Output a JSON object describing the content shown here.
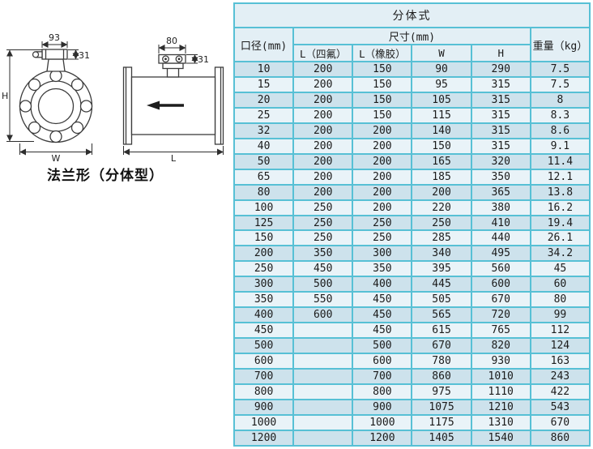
{
  "diagram": {
    "caption": "法兰形（分体型）",
    "front_view": {
      "dim_box_width": "93",
      "dim_box_height": "31",
      "dim_height_label": "H",
      "dim_width_label": "W"
    },
    "side_view": {
      "dim_box_width": "80",
      "dim_box_height": "31",
      "dim_length_label": "L"
    }
  },
  "table": {
    "title": "分体式",
    "headers": {
      "diameter": "口径(mm)",
      "size_group": "尺寸(mm)",
      "l_ptfe": "L（四氟）",
      "l_rubber": "L（橡胶）",
      "w": "W",
      "h": "H",
      "weight": "重量（kg）"
    },
    "rows": [
      [
        "10",
        "200",
        "150",
        "90",
        "290",
        "7.5"
      ],
      [
        "15",
        "200",
        "150",
        "95",
        "315",
        "7.5"
      ],
      [
        "20",
        "200",
        "150",
        "105",
        "315",
        "8"
      ],
      [
        "25",
        "200",
        "150",
        "115",
        "315",
        "8.3"
      ],
      [
        "32",
        "200",
        "200",
        "140",
        "315",
        "8.6"
      ],
      [
        "40",
        "200",
        "200",
        "150",
        "315",
        "9.1"
      ],
      [
        "50",
        "200",
        "200",
        "165",
        "320",
        "11.4"
      ],
      [
        "65",
        "200",
        "200",
        "185",
        "350",
        "12.1"
      ],
      [
        "80",
        "200",
        "200",
        "200",
        "365",
        "13.8"
      ],
      [
        "100",
        "250",
        "200",
        "220",
        "380",
        "16.2"
      ],
      [
        "125",
        "250",
        "250",
        "250",
        "410",
        "19.4"
      ],
      [
        "150",
        "250",
        "250",
        "285",
        "440",
        "26.1"
      ],
      [
        "200",
        "350",
        "300",
        "340",
        "495",
        "34.2"
      ],
      [
        "250",
        "450",
        "350",
        "395",
        "560",
        "45"
      ],
      [
        "300",
        "500",
        "400",
        "445",
        "600",
        "60"
      ],
      [
        "350",
        "550",
        "450",
        "505",
        "670",
        "80"
      ],
      [
        "400",
        "600",
        "450",
        "565",
        "720",
        "99"
      ],
      [
        "450",
        "",
        "450",
        "615",
        "765",
        "112"
      ],
      [
        "500",
        "",
        "500",
        "670",
        "820",
        "124"
      ],
      [
        "600",
        "",
        "600",
        "780",
        "930",
        "163"
      ],
      [
        "700",
        "",
        "700",
        "860",
        "1010",
        "243"
      ],
      [
        "800",
        "",
        "800",
        "975",
        "1110",
        "422"
      ],
      [
        "900",
        "",
        "900",
        "1075",
        "1210",
        "543"
      ],
      [
        "1000",
        "",
        "1000",
        "1175",
        "1310",
        "670"
      ],
      [
        "1200",
        "",
        "1200",
        "1405",
        "1540",
        "860"
      ]
    ],
    "colors": {
      "border": "#57c0d5",
      "header_bg": "#e3eff5",
      "row_odd_bg": "#cde2ec",
      "row_even_bg": "#e9f3f8"
    }
  }
}
